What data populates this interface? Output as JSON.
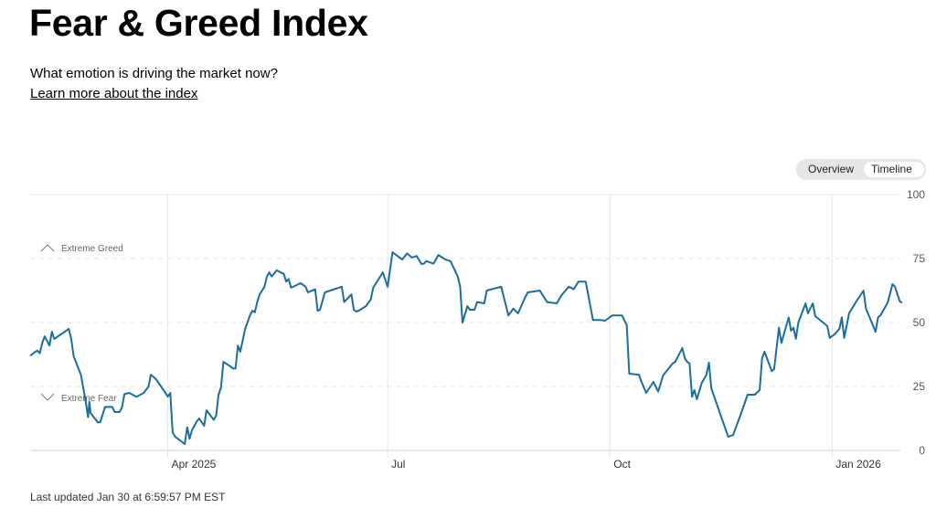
{
  "header": {
    "title": "Fear & Greed Index",
    "subtitle": "What emotion is driving the market now?",
    "learn_more": "Learn more about the index"
  },
  "toggle": {
    "options": [
      "Overview",
      "Timeline"
    ],
    "selected": "Timeline"
  },
  "footer": {
    "last_updated": "Last updated Jan 30 at 6:59:57 PM EST"
  },
  "colors": {
    "line": "#1a6e9c",
    "grid": "#e3e3e3",
    "axis": "#cfcfcf"
  },
  "chart_data": {
    "type": "line",
    "title": "Fear & Greed Index",
    "xlabel": "",
    "ylabel": "",
    "x_unit": "days since Feb 3, 2025",
    "xlim": [
      0,
      361
    ],
    "ylim": [
      0,
      100
    ],
    "y_ticks": [
      "0",
      "25",
      "50",
      "75",
      "100"
    ],
    "x_ticks": [
      {
        "day": 57,
        "label": "Apr 2025"
      },
      {
        "day": 148,
        "label": "Jul"
      },
      {
        "day": 240,
        "label": "Oct"
      },
      {
        "day": 332,
        "label": "Jan 2026"
      }
    ],
    "zones": [
      {
        "label": "Extreme Greed",
        "icon": "chevron-up-icon",
        "value": 75
      },
      {
        "label": "Extreme Fear",
        "icon": "chevron-down-icon",
        "value": 25
      }
    ],
    "series": [
      {
        "name": "Fear & Greed Index",
        "points": [
          [
            0,
            37
          ],
          [
            2,
            38.5
          ],
          [
            3,
            39
          ],
          [
            4,
            38
          ],
          [
            5,
            42
          ],
          [
            6,
            44.6
          ],
          [
            8,
            41
          ],
          [
            9,
            46.4
          ],
          [
            10,
            43.6
          ],
          [
            16,
            47.5
          ],
          [
            17,
            43.6
          ],
          [
            18,
            36.8
          ],
          [
            21,
            29.6
          ],
          [
            23,
            19
          ],
          [
            24,
            13
          ],
          [
            24.5,
            19
          ],
          [
            25,
            14.6
          ],
          [
            28,
            11
          ],
          [
            29,
            11
          ],
          [
            31,
            17
          ],
          [
            34,
            17
          ],
          [
            35,
            15
          ],
          [
            37,
            15
          ],
          [
            38,
            16.8
          ],
          [
            39,
            22
          ],
          [
            41,
            22.5
          ],
          [
            44,
            21
          ],
          [
            47,
            22.5
          ],
          [
            49,
            25
          ],
          [
            50,
            29.6
          ],
          [
            52,
            28
          ],
          [
            56,
            22.5
          ],
          [
            57,
            21
          ],
          [
            58,
            22.5
          ],
          [
            59,
            7
          ],
          [
            60,
            5.4
          ],
          [
            64,
            2.5
          ],
          [
            65,
            9
          ],
          [
            66,
            4.6
          ],
          [
            67,
            8
          ],
          [
            69,
            11.4
          ],
          [
            70,
            12.5
          ],
          [
            72,
            9.6
          ],
          [
            73,
            15.7
          ],
          [
            76,
            12
          ],
          [
            77,
            13.6
          ],
          [
            78,
            21.8
          ],
          [
            79,
            24.6
          ],
          [
            80,
            34.6
          ],
          [
            83,
            32.8
          ],
          [
            84,
            32
          ],
          [
            85,
            32
          ],
          [
            86,
            41
          ],
          [
            87,
            38.6
          ],
          [
            89,
            47.5
          ],
          [
            91,
            52.8
          ],
          [
            92,
            54.6
          ],
          [
            93,
            54
          ],
          [
            94,
            58
          ],
          [
            95,
            61
          ],
          [
            97,
            64
          ],
          [
            98,
            68
          ],
          [
            99,
            69.6
          ],
          [
            100,
            68
          ],
          [
            102,
            70.4
          ],
          [
            105,
            69
          ],
          [
            106,
            66
          ],
          [
            107,
            67
          ],
          [
            108,
            63.6
          ],
          [
            112,
            65.4
          ],
          [
            114,
            64
          ],
          [
            115,
            61.8
          ],
          [
            118,
            63
          ],
          [
            119,
            54.6
          ],
          [
            120,
            55
          ],
          [
            122,
            61.8
          ],
          [
            129,
            64
          ],
          [
            130,
            58
          ],
          [
            133,
            61
          ],
          [
            134,
            55
          ],
          [
            135,
            54.3
          ],
          [
            136,
            54.6
          ],
          [
            139,
            56.4
          ],
          [
            141,
            59
          ],
          [
            142,
            63.6
          ],
          [
            146,
            69.6
          ],
          [
            148,
            64
          ],
          [
            150,
            77.5
          ],
          [
            154,
            74.6
          ],
          [
            156,
            77
          ],
          [
            158,
            75.4
          ],
          [
            160,
            76
          ],
          [
            162,
            72.9
          ],
          [
            163,
            73
          ],
          [
            164,
            74
          ],
          [
            167,
            73
          ],
          [
            169,
            76.4
          ],
          [
            172,
            74.6
          ],
          [
            174,
            74
          ],
          [
            177,
            68
          ],
          [
            178,
            64
          ],
          [
            179,
            50
          ],
          [
            181,
            56.4
          ],
          [
            182,
            55
          ],
          [
            184,
            55
          ],
          [
            185,
            58
          ],
          [
            188,
            57.5
          ],
          [
            189,
            62.5
          ],
          [
            191,
            63
          ],
          [
            195,
            64
          ],
          [
            198,
            52.8
          ],
          [
            200,
            55.4
          ],
          [
            202,
            53.6
          ],
          [
            205,
            60
          ],
          [
            206,
            61.8
          ],
          [
            211,
            62.5
          ],
          [
            212,
            61
          ],
          [
            214,
            58
          ],
          [
            218,
            57.5
          ],
          [
            220,
            60.7
          ],
          [
            223,
            64
          ],
          [
            225,
            63
          ],
          [
            227,
            66
          ],
          [
            230,
            66
          ],
          [
            232,
            56
          ],
          [
            233,
            51
          ],
          [
            236,
            51
          ],
          [
            238,
            50.7
          ],
          [
            241,
            52.8
          ],
          [
            245,
            52.8
          ],
          [
            247,
            49
          ],
          [
            248,
            30
          ],
          [
            252,
            29.6
          ],
          [
            253,
            27
          ],
          [
            255,
            22.5
          ],
          [
            258,
            26.8
          ],
          [
            260,
            23
          ],
          [
            262,
            29.3
          ],
          [
            266,
            34
          ],
          [
            267,
            34.6
          ],
          [
            270,
            40
          ],
          [
            271,
            36
          ],
          [
            272,
            34.6
          ],
          [
            273,
            34
          ],
          [
            274,
            21
          ],
          [
            275,
            23.6
          ],
          [
            276,
            20
          ],
          [
            278,
            26.4
          ],
          [
            280,
            29.6
          ],
          [
            281,
            34.3
          ],
          [
            282,
            24.3
          ],
          [
            287,
            10.7
          ],
          [
            289,
            5.4
          ],
          [
            291,
            6
          ],
          [
            294,
            13.6
          ],
          [
            297,
            21.8
          ],
          [
            300,
            21.8
          ],
          [
            302,
            23.6
          ],
          [
            303,
            36
          ],
          [
            304,
            38.6
          ],
          [
            307,
            31
          ],
          [
            308,
            31.8
          ],
          [
            310,
            48
          ],
          [
            311,
            42
          ],
          [
            314,
            52
          ],
          [
            315,
            46.8
          ],
          [
            316,
            48
          ],
          [
            317,
            43.6
          ],
          [
            318,
            50
          ],
          [
            321,
            57.5
          ],
          [
            322,
            53.6
          ],
          [
            324,
            57.5
          ],
          [
            325,
            52.5
          ],
          [
            330,
            48.6
          ],
          [
            331,
            44
          ],
          [
            333,
            45.4
          ],
          [
            335,
            47.5
          ],
          [
            336,
            52
          ],
          [
            337,
            44
          ],
          [
            339,
            53.6
          ],
          [
            342,
            58.2
          ],
          [
            345,
            62.5
          ],
          [
            346,
            55.4
          ],
          [
            350,
            46.4
          ],
          [
            351,
            52
          ],
          [
            352,
            52.8
          ],
          [
            355,
            57.8
          ],
          [
            356,
            61.4
          ],
          [
            357,
            65
          ],
          [
            358,
            64
          ],
          [
            360,
            58.2
          ],
          [
            361,
            57.8
          ]
        ]
      }
    ]
  }
}
